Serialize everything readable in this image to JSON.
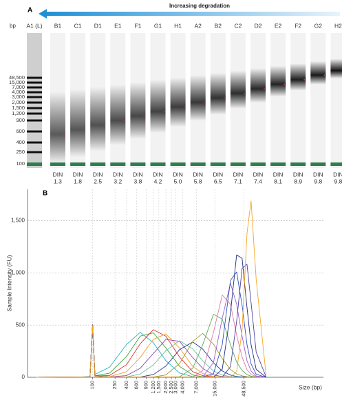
{
  "gel": {
    "label": "A",
    "title": "Increasing degradation",
    "unit": "bp",
    "lanes": [
      "A1 (L)",
      "B1",
      "C1",
      "D1",
      "E1",
      "F1",
      "G1",
      "H1",
      "A2",
      "B2",
      "C2",
      "D2",
      "E2",
      "F2",
      "G2",
      "H2"
    ],
    "ladder_sizes": [
      "48,500",
      "15,000",
      "7,000",
      "4,000",
      "3,000",
      "2,000",
      "1,500",
      "1,200",
      "900",
      "600",
      "400",
      "250",
      "100"
    ],
    "din_label": "DIN",
    "din": [
      "1.3",
      "1.8",
      "2.5",
      "3.2",
      "3.8",
      "4.2",
      "5.0",
      "5.8",
      "6.5",
      "7.1",
      "7.4",
      "8.1",
      "8.9",
      "9.8",
      "9.8"
    ]
  },
  "chart_data": {
    "type": "line",
    "label": "B",
    "xlabel": "Size (bp)",
    "ylabel": "Sample Intensity (FU)",
    "log_x": true,
    "grid": true,
    "xlim": [
      7,
      1250000
    ],
    "ylim": [
      0,
      1800
    ],
    "xticks": [
      100,
      250,
      400,
      600,
      900,
      {
        "value": 1200,
        "label": "1,200"
      },
      {
        "value": 1500,
        "label": "1,500"
      },
      {
        "value": 2000,
        "label": "2,000"
      },
      {
        "value": 2500,
        "label": "2,500"
      },
      {
        "value": 3000,
        "label": "3,000"
      },
      {
        "value": 4000,
        "label": "4,000"
      },
      {
        "value": 7000,
        "label": "7,000"
      },
      {
        "value": 15000,
        "label": "15,000"
      },
      {
        "value": 48500,
        "label": "48,500"
      }
    ],
    "yticks": [
      0,
      500,
      {
        "value": 1000,
        "label": "1,000"
      },
      {
        "value": 1500,
        "label": "1,500"
      }
    ],
    "x": [
      10,
      60,
      90,
      100,
      110,
      200,
      400,
      700,
      1200,
      2000,
      3500,
      6000,
      9000,
      14000,
      20000,
      28000,
      36000,
      45000,
      55000,
      65000,
      80000,
      120000
    ],
    "series": [
      {
        "color": "#2ab0c5",
        "values": [
          0,
          3,
          8,
          500,
          27,
          97,
          314,
          430,
          331,
          159,
          41,
          6,
          3,
          3,
          3,
          3,
          3,
          3,
          3,
          3,
          3,
          0
        ]
      },
      {
        "color": "#3aa53a",
        "values": [
          0,
          3,
          4,
          498,
          14,
          39,
          199,
          394,
          426,
          281,
          104,
          22,
          5,
          3,
          3,
          3,
          3,
          3,
          3,
          3,
          3,
          0
        ]
      },
      {
        "color": "#e03030",
        "values": [
          0,
          3,
          3,
          502,
          13,
          17,
          120,
          321,
          456,
          393,
          194,
          53,
          16,
          4,
          3,
          3,
          3,
          3,
          3,
          3,
          3,
          0
        ]
      },
      {
        "color": "#f0a030",
        "values": [
          0,
          3,
          3,
          497,
          12,
          5,
          53,
          190,
          364,
          415,
          279,
          104,
          37,
          8,
          3,
          3,
          3,
          3,
          3,
          3,
          3,
          0
        ]
      },
      {
        "color": "#8a4bb0",
        "values": [
          0,
          3,
          3,
          503,
          12,
          4,
          16,
          86,
          229,
          362,
          345,
          188,
          86,
          23,
          7,
          3,
          3,
          3,
          3,
          3,
          3,
          0
        ]
      },
      {
        "color": "#66c2a5",
        "values": [
          0,
          3,
          3,
          499,
          11,
          3,
          4,
          31,
          119,
          255,
          350,
          271,
          158,
          60,
          22,
          6,
          3,
          3,
          3,
          3,
          3,
          0
        ]
      },
      {
        "color": "#283593",
        "values": [
          0,
          3,
          3,
          501,
          12,
          3,
          3,
          3,
          26,
          108,
          265,
          338,
          270,
          138,
          61,
          21,
          8,
          3,
          3,
          3,
          3,
          0
        ]
      },
      {
        "color": "#9e9d24",
        "values": [
          0,
          3,
          3,
          499,
          12,
          3,
          3,
          3,
          3,
          23,
          131,
          344,
          420,
          317,
          180,
          74,
          32,
          14,
          5,
          3,
          3,
          0
        ]
      },
      {
        "color": "#5cab5c",
        "values": [
          0,
          3,
          3,
          496,
          11,
          3,
          3,
          3,
          3,
          3,
          5,
          87,
          312,
          603,
          557,
          312,
          147,
          65,
          25,
          10,
          3,
          0
        ]
      },
      {
        "color": "#e07aa0",
        "values": [
          0,
          3,
          3,
          500,
          12,
          3,
          3,
          3,
          3,
          3,
          3,
          4,
          63,
          432,
          788,
          700,
          404,
          194,
          72,
          28,
          6,
          0
        ]
      },
      {
        "color": "#9c5fd0",
        "values": [
          0,
          3,
          3,
          498,
          11,
          3,
          3,
          3,
          3,
          3,
          3,
          3,
          5,
          142,
          566,
          900,
          701,
          394,
          157,
          61,
          13,
          0
        ]
      },
      {
        "color": "#3050c0",
        "values": [
          0,
          3,
          3,
          502,
          12,
          3,
          3,
          3,
          3,
          3,
          3,
          3,
          3,
          35,
          313,
          928,
          1008,
          690,
          313,
          128,
          29,
          0
        ]
      },
      {
        "color": "#1f2a80",
        "values": [
          0,
          3,
          3,
          497,
          11,
          3,
          3,
          3,
          3,
          3,
          3,
          3,
          3,
          3,
          76,
          617,
          1172,
          1139,
          669,
          313,
          76,
          1
        ]
      },
      {
        "color": "#4a3fa0",
        "values": [
          0,
          3,
          3,
          500,
          12,
          3,
          3,
          3,
          3,
          3,
          3,
          3,
          3,
          3,
          3,
          101,
          535,
          1043,
          1082,
          714,
          242,
          4
        ]
      },
      {
        "color": "#f5a623",
        "values": [
          0,
          3,
          3,
          495,
          11,
          3,
          3,
          3,
          3,
          3,
          3,
          3,
          3,
          3,
          3,
          2,
          55,
          453,
          1377,
          1690,
          940,
          17
        ]
      }
    ]
  }
}
